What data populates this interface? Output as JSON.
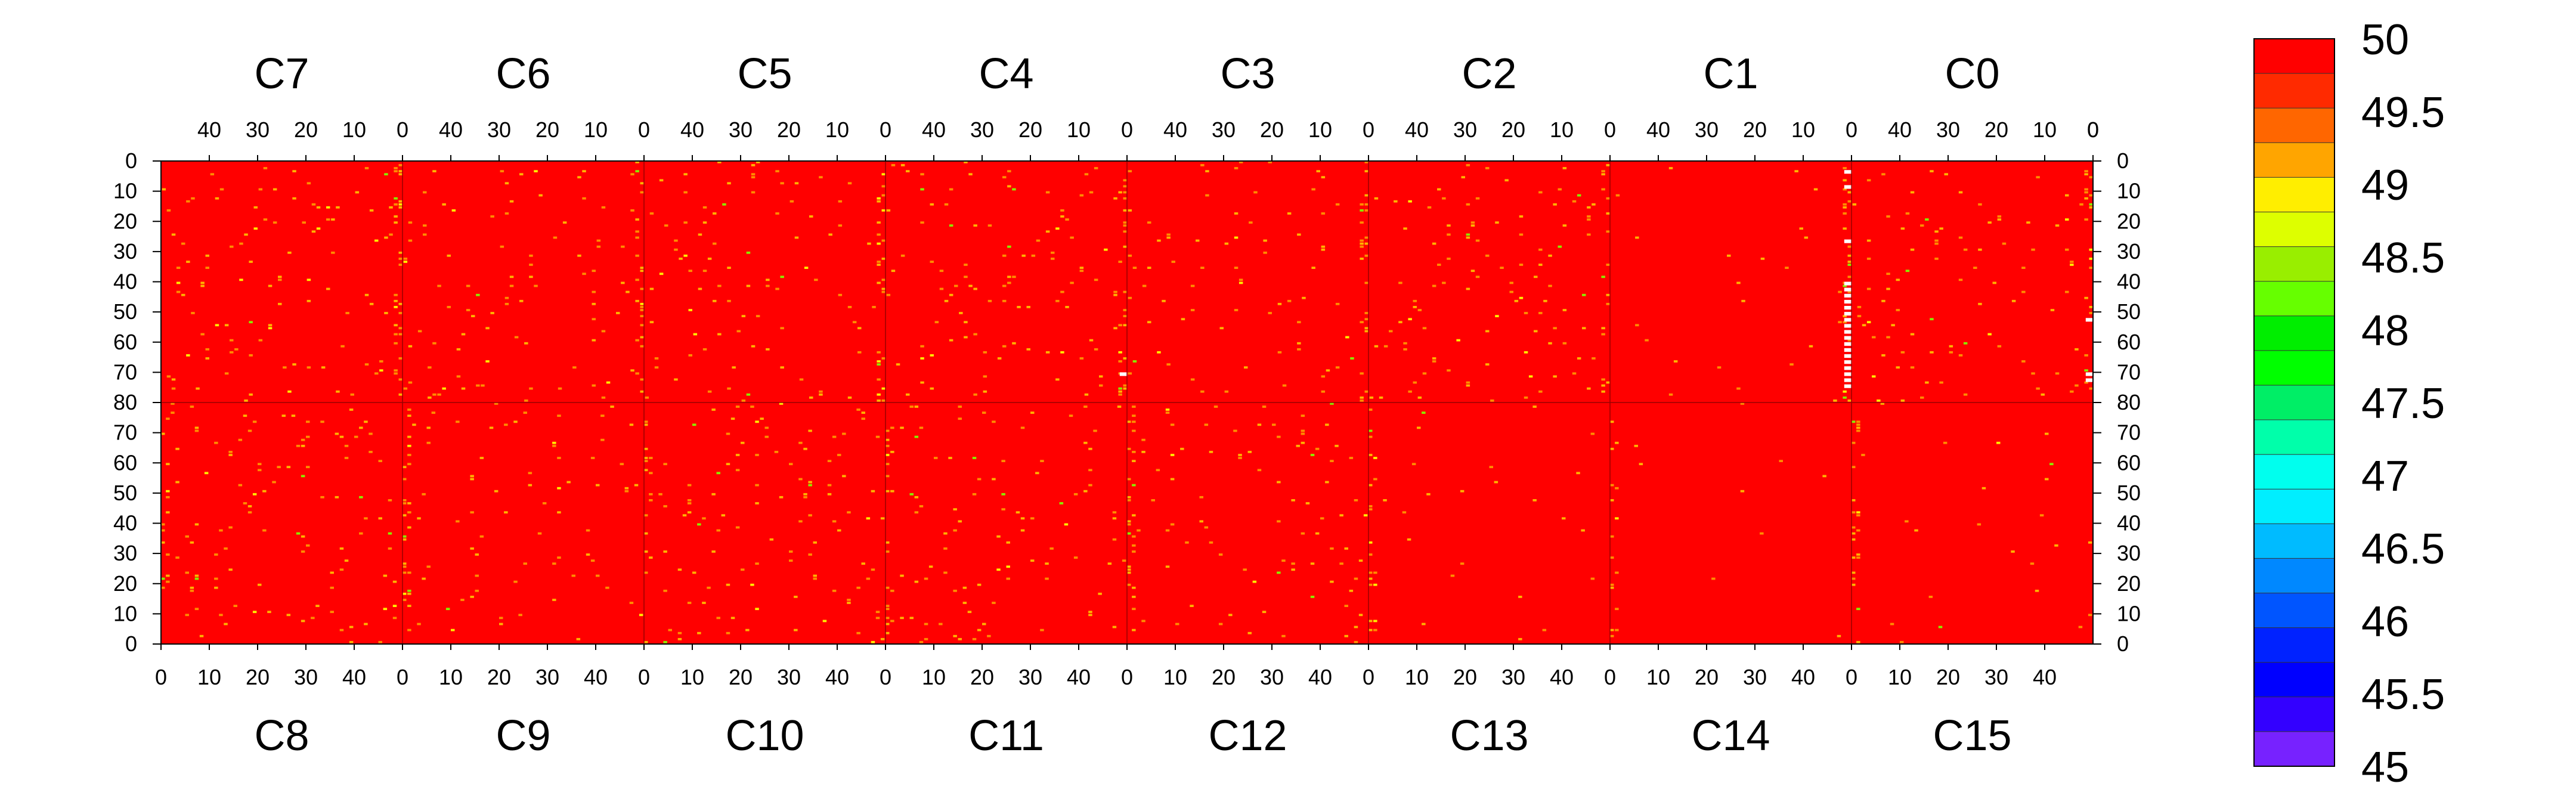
{
  "chart_data": {
    "type": "heatmap",
    "title": "",
    "xlabel": "",
    "ylabel": "",
    "grid": false,
    "top_chips": [
      "C7",
      "C6",
      "C5",
      "C4",
      "C3",
      "C2",
      "C1",
      "C0"
    ],
    "bottom_chips": [
      "C8",
      "C9",
      "C10",
      "C11",
      "C12",
      "C13",
      "C14",
      "C15"
    ],
    "x_range": [
      0,
      50
    ],
    "y_range": [
      0,
      80
    ],
    "top_x_ticks": [
      "40",
      "30",
      "20",
      "10",
      "0"
    ],
    "bottom_x_ticks": [
      "0",
      "10",
      "20",
      "30",
      "40"
    ],
    "top_y_ticks": [
      "0",
      "10",
      "20",
      "30",
      "40",
      "50",
      "60",
      "70",
      "80"
    ],
    "bottom_y_ticks": [
      "70",
      "60",
      "50",
      "40",
      "30",
      "20",
      "10",
      "0"
    ],
    "z_range": [
      45,
      50
    ],
    "dominant_value": 50,
    "colorbar": {
      "placement": "right",
      "labels": [
        "50",
        "49.5",
        "49",
        "48.5",
        "48",
        "47.5",
        "47",
        "46.5",
        "46",
        "45.5",
        "45"
      ],
      "colors": [
        "#ff0000",
        "#ff2a00",
        "#ff6600",
        "#ffa500",
        "#ffee00",
        "#ddff00",
        "#99ee00",
        "#66ff00",
        "#00ee00",
        "#00ff00",
        "#00ee66",
        "#00ffaa",
        "#00ffee",
        "#00eeff",
        "#00bbff",
        "#0088ff",
        "#0055ff",
        "#0022ff",
        "#0000ff",
        "#3300ff",
        "#7722ff"
      ]
    },
    "deviation_colors": {
      "orange": "#ff8c00",
      "amber": "#ffb300",
      "yellow": "#ffee00",
      "green": "#88ee00",
      "white": "#ffffff"
    }
  }
}
